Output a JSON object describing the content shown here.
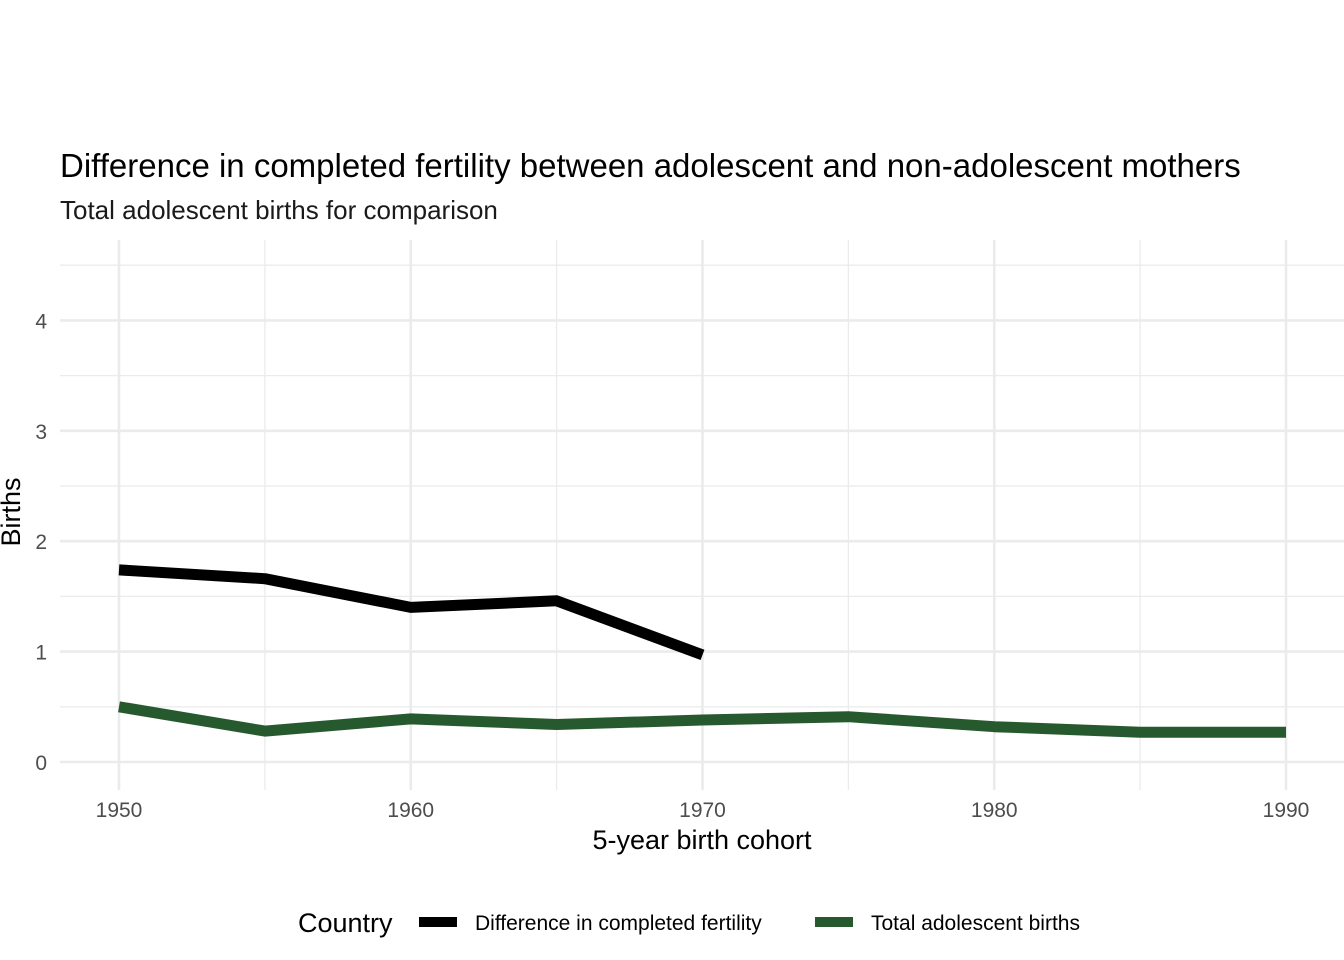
{
  "chart_data": {
    "type": "line",
    "title": "Difference in completed fertility between adolescent and non-adolescent mothers",
    "subtitle": "Total adolescent births for comparison",
    "xlabel": "5-year birth cohort",
    "ylabel": "Births",
    "xlim": [
      1948,
      1991
    ],
    "ylim": [
      -0.25,
      4.75
    ],
    "x_ticks": [
      1950,
      1960,
      1970,
      1980,
      1990
    ],
    "y_ticks": [
      0,
      1,
      2,
      3,
      4
    ],
    "grid": true,
    "legend": {
      "title": "Country",
      "position": "bottom"
    },
    "series": [
      {
        "name": "Difference in completed fertility",
        "color": "#000000",
        "x": [
          1950,
          1955,
          1960,
          1965,
          1970
        ],
        "y": [
          1.74,
          1.66,
          1.4,
          1.46,
          0.97
        ]
      },
      {
        "name": "Total adolescent births",
        "color": "#27592f",
        "x": [
          1950,
          1955,
          1960,
          1965,
          1970,
          1975,
          1980,
          1985,
          1990
        ],
        "y": [
          0.5,
          0.28,
          0.39,
          0.34,
          0.38,
          0.41,
          0.32,
          0.27,
          0.27
        ]
      }
    ]
  }
}
